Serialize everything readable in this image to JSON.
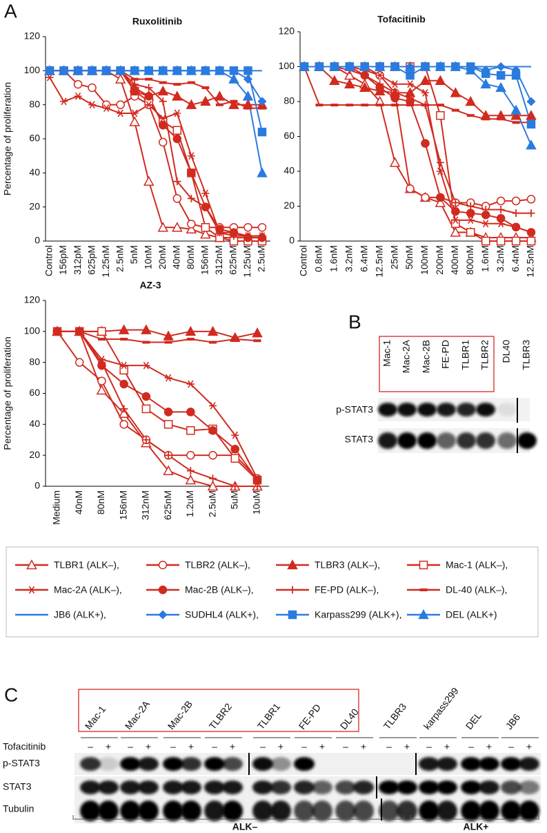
{
  "panel_labels": [
    "A",
    "B",
    "C"
  ],
  "chart_data": [
    {
      "type": "line",
      "title": "Ruxolitinib",
      "ylabel": "Percentage of proliferation",
      "grid": false,
      "categories": [
        "Control",
        "156pM",
        "312pM",
        "625pM",
        "1.25nM",
        "2.5nM",
        "5nM",
        "10nM",
        "20nM",
        "40nM",
        "80nM",
        "156nM",
        "312nM",
        "625nM",
        "1.25uM",
        "2.5uM"
      ],
      "ylim": [
        0,
        120
      ],
      "yticks": [
        0,
        20,
        40,
        60,
        80,
        100,
        120
      ],
      "series": [
        {
          "values": [
            100,
            100,
            100,
            100,
            100,
            95,
            70,
            35,
            8,
            8,
            7,
            4,
            2,
            2,
            2,
            2
          ]
        },
        {
          "values": [
            100,
            100,
            92,
            90,
            80,
            80,
            85,
            80,
            58,
            25,
            10,
            8,
            8,
            8,
            8,
            8
          ]
        },
        {
          "values": [
            100,
            100,
            100,
            100,
            100,
            100,
            90,
            85,
            88,
            85,
            80,
            82,
            85,
            80,
            80,
            80
          ]
        },
        {
          "values": [
            100,
            100,
            100,
            100,
            100,
            100,
            88,
            82,
            70,
            65,
            40,
            8,
            2,
            0,
            0,
            0
          ]
        },
        {
          "values": [
            96,
            82,
            85,
            80,
            78,
            75,
            75,
            80,
            72,
            75,
            50,
            28,
            5,
            5,
            3,
            3
          ]
        },
        {
          "values": [
            100,
            100,
            100,
            100,
            100,
            100,
            88,
            85,
            68,
            60,
            40,
            20,
            7,
            5,
            2,
            2
          ]
        },
        {
          "values": [
            100,
            100,
            100,
            100,
            100,
            100,
            92,
            90,
            82,
            35,
            25,
            20,
            5,
            3,
            3,
            3
          ]
        },
        {
          "values": [
            100,
            100,
            100,
            100,
            100,
            100,
            95,
            95,
            93,
            92,
            93,
            90,
            80,
            82,
            78,
            78
          ]
        },
        {
          "values": [
            100,
            100,
            100,
            100,
            100,
            100,
            100,
            100,
            100,
            100,
            100,
            100,
            100,
            100,
            100,
            100
          ]
        },
        {
          "values": [
            100,
            100,
            100,
            100,
            100,
            100,
            100,
            100,
            100,
            100,
            100,
            100,
            100,
            100,
            95,
            82
          ]
        },
        {
          "values": [
            100,
            100,
            100,
            100,
            100,
            100,
            100,
            100,
            100,
            100,
            100,
            100,
            100,
            100,
            100,
            64
          ]
        },
        {
          "values": [
            100,
            100,
            100,
            100,
            100,
            100,
            100,
            100,
            100,
            100,
            100,
            100,
            100,
            95,
            85,
            40
          ]
        }
      ]
    },
    {
      "type": "line",
      "title": "Tofacitinib",
      "grid": false,
      "categories": [
        "Control",
        "0.8nM",
        "1.6nM",
        "3.2nM",
        "6.4nM",
        "12.5nM",
        "25nM",
        "50nM",
        "100nM",
        "200nM",
        "400nM",
        "800nM",
        "1.6nM",
        "3.2nM",
        "6.4nM",
        "12.5nM"
      ],
      "ylim": [
        0,
        120
      ],
      "yticks": [
        0,
        20,
        40,
        60,
        80,
        100,
        120
      ],
      "series": [
        {
          "values": [
            100,
            100,
            100,
            95,
            90,
            80,
            45,
            30,
            25,
            22,
            5,
            5,
            2,
            2,
            2,
            2
          ]
        },
        {
          "values": [
            100,
            100,
            100,
            100,
            100,
            95,
            85,
            30,
            25,
            25,
            22,
            22,
            20,
            23,
            23,
            24
          ]
        },
        {
          "values": [
            100,
            100,
            92,
            90,
            88,
            86,
            85,
            85,
            92,
            92,
            85,
            80,
            72,
            72,
            72,
            72
          ]
        },
        {
          "values": [
            100,
            100,
            100,
            100,
            100,
            100,
            100,
            100,
            100,
            72,
            10,
            5,
            0,
            0,
            0,
            0
          ]
        },
        {
          "values": [
            100,
            100,
            100,
            100,
            98,
            95,
            90,
            90,
            85,
            40,
            12,
            12,
            10,
            10,
            8,
            5
          ]
        },
        {
          "values": [
            100,
            100,
            100,
            100,
            95,
            88,
            82,
            80,
            56,
            25,
            17,
            16,
            15,
            13,
            8,
            5
          ]
        },
        {
          "values": [
            100,
            100,
            100,
            98,
            95,
            90,
            85,
            82,
            78,
            45,
            22,
            20,
            18,
            18,
            16,
            16
          ]
        },
        {
          "values": [
            100,
            78,
            78,
            78,
            78,
            78,
            78,
            78,
            78,
            78,
            75,
            72,
            70,
            70,
            68,
            68
          ]
        },
        {
          "values": [
            100,
            100,
            100,
            100,
            100,
            100,
            100,
            100,
            100,
            100,
            100,
            100,
            100,
            100,
            100,
            100
          ]
        },
        {
          "values": [
            100,
            100,
            100,
            100,
            100,
            100,
            100,
            100,
            100,
            100,
            100,
            100,
            98,
            100,
            98,
            80
          ]
        },
        {
          "values": [
            100,
            100,
            100,
            100,
            100,
            100,
            100,
            95,
            100,
            100,
            100,
            100,
            96,
            95,
            95,
            67
          ]
        },
        {
          "values": [
            100,
            100,
            100,
            100,
            100,
            100,
            100,
            100,
            100,
            100,
            100,
            98,
            90,
            88,
            75,
            55
          ]
        }
      ]
    },
    {
      "type": "line",
      "title": "AZ-3",
      "ylabel": "Percentage of proliferation",
      "grid": false,
      "categories": [
        "Medium",
        "40nM",
        "80nM",
        "156nM",
        "312nM",
        "625nM",
        "1.2uM",
        "2.5uM",
        "5uM",
        "10uM"
      ],
      "ylim": [
        0,
        120
      ],
      "yticks": [
        0,
        20,
        40,
        60,
        80,
        100,
        120
      ],
      "series": [
        {
          "values": [
            100,
            100,
            62,
            47,
            28,
            10,
            4,
            0,
            0,
            0
          ]
        },
        {
          "values": [
            100,
            80,
            68,
            40,
            30,
            20,
            20,
            20,
            20,
            5
          ]
        },
        {
          "values": [
            100,
            100,
            100,
            101,
            101,
            97,
            100,
            100,
            96,
            99
          ]
        },
        {
          "values": [
            100,
            100,
            100,
            75,
            50,
            40,
            36,
            37,
            18,
            4
          ]
        },
        {
          "values": [
            100,
            100,
            82,
            78,
            78,
            70,
            66,
            52,
            33,
            5
          ]
        },
        {
          "values": [
            100,
            100,
            78,
            66,
            58,
            48,
            48,
            36,
            24,
            4
          ]
        },
        {
          "values": [
            100,
            100,
            80,
            50,
            30,
            20,
            10,
            5,
            0,
            0
          ]
        },
        {
          "values": [
            100,
            100,
            95,
            95,
            93,
            93,
            95,
            93,
            95,
            94
          ]
        }
      ]
    }
  ],
  "legend": {
    "entries": [
      {
        "name": "TLBR1 (ALK–),",
        "color": "#d12a1f",
        "marker": "open-triangle"
      },
      {
        "name": "TLBR2 (ALK–),",
        "color": "#d12a1f",
        "marker": "open-circle"
      },
      {
        "name": "TLBR3 (ALK–),",
        "color": "#d12a1f",
        "marker": "filled-triangle"
      },
      {
        "name": "Mac-1 (ALK–),",
        "color": "#d12a1f",
        "marker": "open-square"
      },
      {
        "name": "Mac-2A (ALK–),",
        "color": "#d12a1f",
        "marker": "asterisk"
      },
      {
        "name": "Mac-2B (ALK–),",
        "color": "#d12a1f",
        "marker": "filled-circle"
      },
      {
        "name": "FE-PD (ALK–),",
        "color": "#d12a1f",
        "marker": "plus"
      },
      {
        "name": "DL-40 (ALK–),",
        "color": "#d12a1f",
        "marker": "dash"
      },
      {
        "name": "JB6 (ALK+),",
        "color": "#2a7be0",
        "marker": "none"
      },
      {
        "name": "SUDHL4 (ALK+),",
        "color": "#2a7be0",
        "marker": "diamond"
      },
      {
        "name": "Karpass299 (ALK+),",
        "color": "#2a7be0",
        "marker": "filled-square"
      },
      {
        "name": "DEL (ALK+)",
        "color": "#2a7be0",
        "marker": "filled-triangle"
      }
    ]
  },
  "blot_b": {
    "lanes": [
      "Mac-1",
      "Mac-2A",
      "Mac-2B",
      "FE-PD",
      "TLBR1",
      "TLBR2",
      "DL40",
      "TLBR3"
    ],
    "rows": [
      "p-STAT3",
      "STAT3"
    ]
  },
  "blot_c": {
    "lanes": [
      "Mac-1",
      "Mac-2A",
      "Mac-2B",
      "TLBR2",
      "TLBR1",
      "FE-PD",
      "DL40",
      "TLBR3",
      "karpass299",
      "DEL",
      "JB6"
    ],
    "treatment_label": "Tofacitinib",
    "treatment": [
      "–",
      "+"
    ],
    "rows": [
      "p-STAT3",
      "STAT3",
      "Tubulin"
    ],
    "groups": [
      "ALK–",
      "ALK+"
    ]
  }
}
